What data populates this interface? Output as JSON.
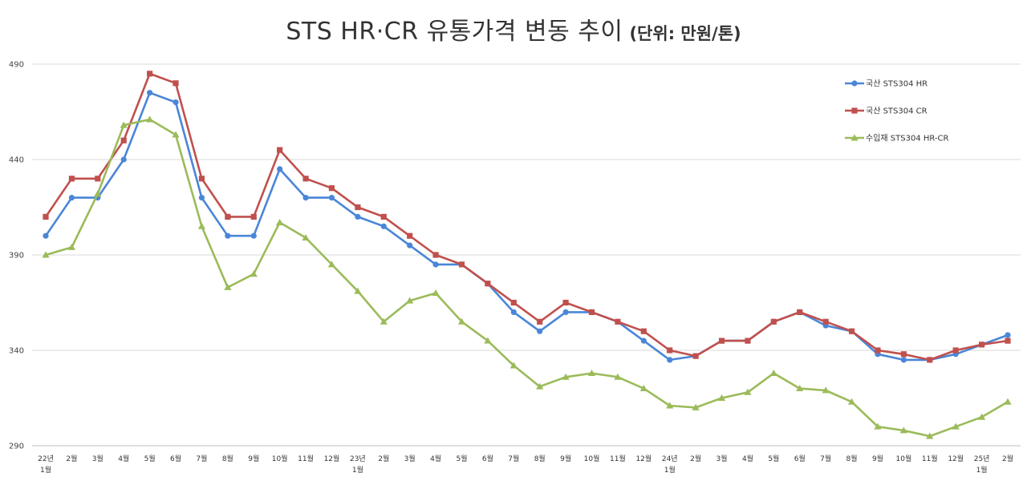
{
  "chart_data": {
    "type": "line",
    "title": "STS HR·CR 유통가격 변동 추이",
    "unit_note": "(단위: 만원/톤)",
    "ylim": [
      290,
      490
    ],
    "yticks": [
      "290",
      "340",
      "390",
      "440",
      "490"
    ],
    "grid": "horizontal",
    "legend_position": "right",
    "categories": [
      [
        "22년",
        "1월"
      ],
      [
        "2월"
      ],
      [
        "3월"
      ],
      [
        "4월"
      ],
      [
        "5월"
      ],
      [
        "6월"
      ],
      [
        "7월"
      ],
      [
        "8월"
      ],
      [
        "9월"
      ],
      [
        "10월"
      ],
      [
        "11월"
      ],
      [
        "12월"
      ],
      [
        "23년",
        "1월"
      ],
      [
        "2월"
      ],
      [
        "3월"
      ],
      [
        "4월"
      ],
      [
        "5월"
      ],
      [
        "6월"
      ],
      [
        "7월"
      ],
      [
        "8월"
      ],
      [
        "9월"
      ],
      [
        "10월"
      ],
      [
        "11월"
      ],
      [
        "12월"
      ],
      [
        "24년",
        "1월"
      ],
      [
        "2월"
      ],
      [
        "3월"
      ],
      [
        "4월"
      ],
      [
        "5월"
      ],
      [
        "6월"
      ],
      [
        "7월"
      ],
      [
        "8월"
      ],
      [
        "9월"
      ],
      [
        "10월"
      ],
      [
        "11월"
      ],
      [
        "12월"
      ],
      [
        "25년",
        "1월"
      ],
      [
        "2월"
      ]
    ],
    "series": [
      {
        "name": "국산 STS304 HR",
        "color": "#4a86d8",
        "marker": "circle",
        "values": [
          400,
          420,
          420,
          440,
          475,
          470,
          420,
          400,
          400,
          435,
          420,
          420,
          410,
          405,
          395,
          385,
          385,
          375,
          360,
          350,
          360,
          360,
          355,
          345,
          335,
          337,
          345,
          345,
          355,
          360,
          353,
          350,
          338,
          335,
          335,
          338,
          343,
          348
        ]
      },
      {
        "name": "국산 STS304 CR",
        "color": "#c0504d",
        "marker": "square",
        "values": [
          410,
          430,
          430,
          450,
          485,
          480,
          430,
          410,
          410,
          445,
          430,
          425,
          415,
          410,
          400,
          390,
          385,
          375,
          365,
          355,
          365,
          360,
          355,
          350,
          340,
          337,
          345,
          345,
          355,
          360,
          355,
          350,
          340,
          338,
          335,
          340,
          343,
          345
        ]
      },
      {
        "name": "수입재 STS304 HR-CR",
        "color": "#9bbb59",
        "marker": "triangle",
        "values": [
          390,
          394,
          422,
          458,
          461,
          453,
          405,
          373,
          380,
          407,
          399,
          385,
          371,
          355,
          366,
          370,
          355,
          345,
          332,
          321,
          326,
          328,
          326,
          320,
          311,
          310,
          315,
          318,
          328,
          320,
          319,
          313,
          300,
          298,
          295,
          300,
          305,
          313
        ]
      }
    ]
  }
}
